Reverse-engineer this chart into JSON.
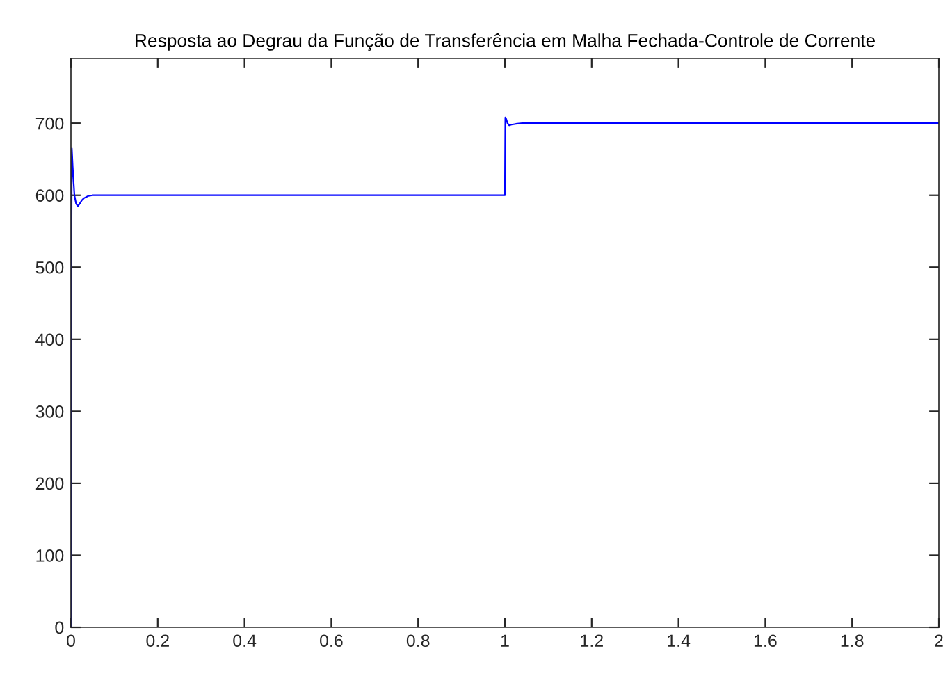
{
  "chart_data": {
    "type": "line",
    "title": "Resposta ao Degrau da Função de Transferência em Malha Fechada-Controle de Corrente",
    "x": [
      0,
      0.001,
      0.002,
      0.004,
      0.008,
      0.012,
      0.016,
      0.02,
      0.025,
      0.03,
      0.04,
      0.05,
      0.1,
      0.5,
      0.999,
      1.0,
      1.001,
      1.003,
      1.006,
      1.01,
      1.015,
      1.025,
      1.04,
      1.1,
      1.5,
      2.0
    ],
    "series": [
      {
        "color": "#0000ff",
        "values": [
          0,
          500,
          665,
          640,
          600,
          588,
          585,
          588,
          593,
          596,
          599,
          600,
          600,
          600,
          600,
          600,
          708,
          706,
          700,
          697,
          698,
          699,
          700,
          700,
          700,
          700
        ]
      }
    ],
    "xlim": [
      0,
      2
    ],
    "xticks": [
      0,
      0.2,
      0.4,
      0.6,
      0.8,
      1,
      1.2,
      1.4,
      1.6,
      1.8,
      2
    ],
    "ylim": [
      0,
      790
    ],
    "yticks": [
      0,
      100,
      200,
      300,
      400,
      500,
      600,
      700
    ],
    "grid": false,
    "line_style": "solid",
    "marker": "none"
  }
}
